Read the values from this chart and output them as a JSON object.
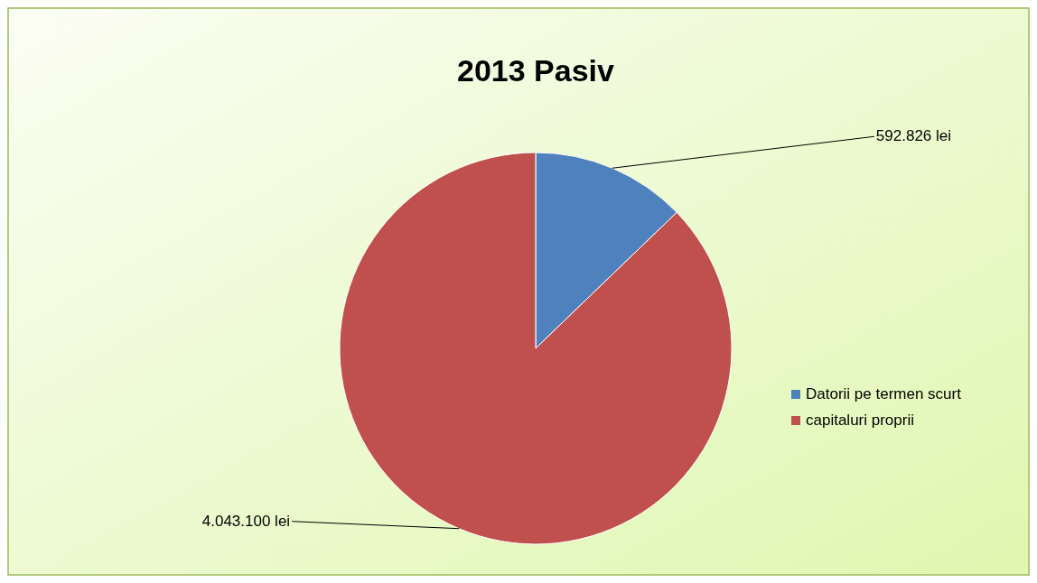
{
  "chart_data": {
    "type": "pie",
    "title": "2013 Pasiv",
    "categories": [
      "Datorii pe termen scurt",
      "capitaluri proprii"
    ],
    "values": [
      592826,
      4043100
    ],
    "colors": [
      "#4f81bd",
      "#c0504d"
    ],
    "value_labels": [
      "592.826 lei",
      "4.043.100 lei"
    ],
    "legend": "right"
  }
}
